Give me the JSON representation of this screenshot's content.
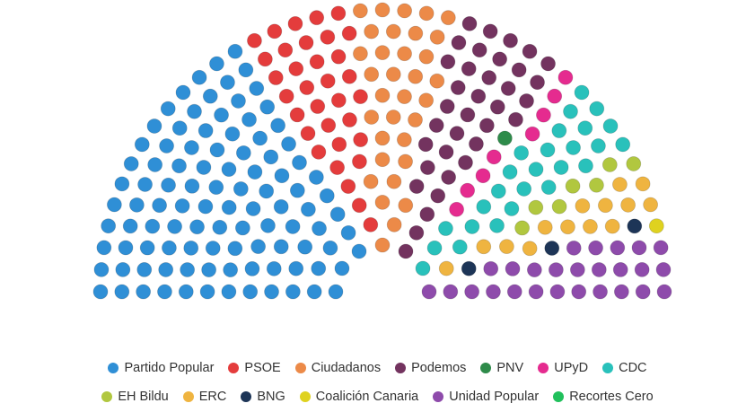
{
  "chart_data": {
    "type": "parliament",
    "title": "",
    "legend_position": "bottom",
    "parties": [
      {
        "name": "Partido Popular",
        "color": "#2f8fd6",
        "seats": 123
      },
      {
        "name": "PSOE",
        "color": "#e43c3c",
        "seats": 40
      },
      {
        "name": "Ciudadanos",
        "color": "#ec8a48",
        "seats": 40
      },
      {
        "name": "Podemos",
        "color": "#73335f",
        "seats": 42
      },
      {
        "name": "PNV",
        "color": "#2e8b4a",
        "seats": 1
      },
      {
        "name": "UPyD",
        "color": "#e52b8f",
        "seats": 10
      },
      {
        "name": "CDC",
        "color": "#29c1bb",
        "seats": 32
      },
      {
        "name": "EH Bildu",
        "color": "#b1c73f",
        "seats": 8
      },
      {
        "name": "ERC",
        "color": "#efb440",
        "seats": 17
      },
      {
        "name": "BNG",
        "color": "#1d3557",
        "seats": 4
      },
      {
        "name": "Coalición Canaria",
        "color": "#dfd21f",
        "seats": 1
      },
      {
        "name": "Unidad Popular",
        "color": "#8e4bab",
        "seats": 32
      },
      {
        "name": "Recortes Cero",
        "color": "#21c05c",
        "seats": 0
      }
    ]
  }
}
